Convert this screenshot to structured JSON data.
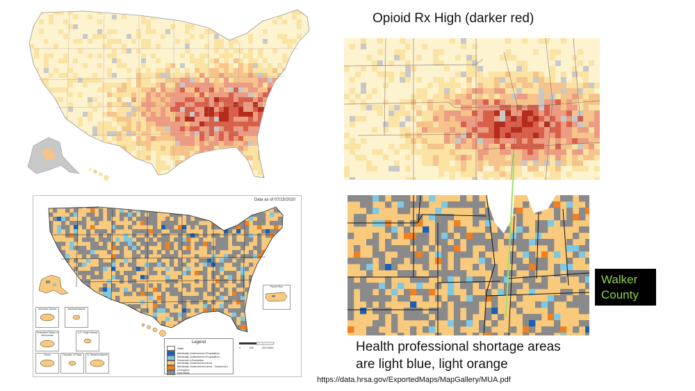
{
  "title": "Opioid Rx High (darker red)",
  "caption_lines": [
    "Health professional shortage areas",
    "are light blue, light orange"
  ],
  "walker_label_lines": [
    "Walker",
    "County"
  ],
  "source_url": "https://data.hrsa.gov/ExportedMaps/MapGallery/MUA.pdf",
  "hrsa_map": {
    "date_label": "Data as of 07/15/2020",
    "legend_title": "Legend",
    "legend_items": [
      {
        "label": "State",
        "color": "#ffffff"
      },
      {
        "label": "Medically Underserved Population",
        "color": "#1a5fb4"
      },
      {
        "label": "Medically Underserved Population - Governor's Exception",
        "color": "#7ec8e3"
      },
      {
        "label": "Medically Underserved Area",
        "color": "#f9c97c"
      },
      {
        "label": "Medically Underserved Area - Governor's Exception",
        "color": "#f07f1e"
      },
      {
        "label": "Non-MUA",
        "color": "#8a8a8a"
      }
    ],
    "scale_labels": [
      "0",
      "150",
      "300 Miles"
    ],
    "inset_labels": [
      "American Samoa",
      "Marshall Islands",
      "Federated States of Micronesia",
      "U.S. Virgin Islands",
      "Guam",
      "Republic of Palau",
      "N. Mariana Islands",
      "Puerto Rico"
    ]
  },
  "colors": {
    "opioid_scale": [
      "#fdf3cf",
      "#fbe3a4",
      "#f6c48a",
      "#ec9c82",
      "#d8604a",
      "#b42c1c"
    ],
    "no_data": "#c8c8c8",
    "hrsa_scale": [
      "#f9c97c",
      "#8a8a8a",
      "#7ec8e3",
      "#f07f1e",
      "#1a5fb4"
    ],
    "connector_line": "#9ee06a",
    "walker_text": "#8fd24a"
  }
}
